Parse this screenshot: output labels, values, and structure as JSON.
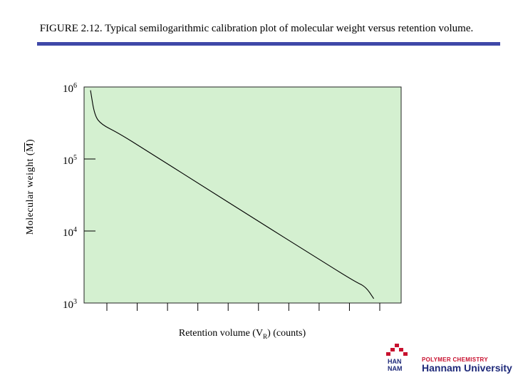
{
  "figure": {
    "title": "FIGURE 2.12. Typical semilogarithmic calibration plot of molecular weight versus retention volume.",
    "rule_color": "#3f48a8"
  },
  "chart_data": {
    "type": "line",
    "scale_y": "log",
    "ylabel_prefix": "Molecular weight (",
    "ylabel_symbol": "M",
    "ylabel_suffix": ")",
    "xlabel_main": "Retention volume (V",
    "xlabel_sub": "R",
    "xlabel_suffix": ") (counts)",
    "ylim": [
      1000,
      1000000
    ],
    "y_ticks": [
      {
        "base": "10",
        "exp": "6",
        "value": 1000000
      },
      {
        "base": "10",
        "exp": "5",
        "value": 100000
      },
      {
        "base": "10",
        "exp": "4",
        "value": 10000
      },
      {
        "base": "10",
        "exp": "3",
        "value": 1000
      }
    ],
    "x_tick_count": 10,
    "plot_background": "#d4f0d0",
    "line_color": "#000000",
    "grid": false,
    "series": [
      {
        "x": [
          0.0,
          0.15,
          0.4,
          1.0,
          2.0,
          4.0,
          6.0,
          8.0,
          9.5,
          9.9,
          10.2
        ],
        "y": [
          900000,
          400000,
          300000,
          230000,
          132000,
          43000,
          14000,
          4600,
          2000,
          1700,
          1150
        ]
      }
    ]
  },
  "logo": {
    "mark_color": "#c8102e",
    "han_line1": "HAN",
    "han_line2": "NAM",
    "sub": "POLYMER CHEMISTRY",
    "name": "Hannam University"
  }
}
